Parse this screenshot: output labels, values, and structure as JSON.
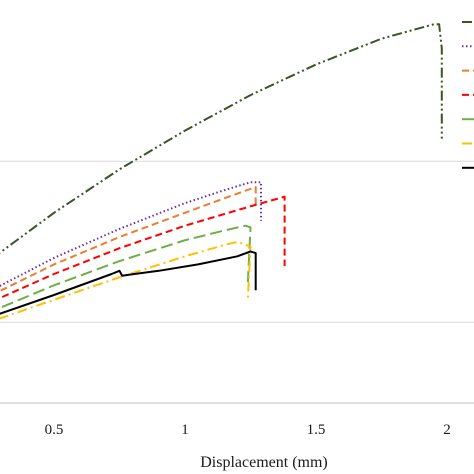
{
  "chart_data": {
    "type": "line",
    "xlabel": "Displacement (mm)",
    "ylabel": "",
    "title": "",
    "xlim": [
      0.0,
      2.1
    ],
    "ylim": [
      0,
      2.5
    ],
    "x_ticks": [
      0.5,
      1,
      1.5,
      2
    ],
    "x_tick_labels": [
      "0.5",
      "1",
      "1.5",
      "2"
    ],
    "y_gridlines": [
      0.5,
      1.5
    ],
    "grid": "horizontal",
    "legend": {
      "placement": "right",
      "entries_visible": 7
    },
    "series": [
      {
        "color": "#375623",
        "dash": "dash-dot-dot",
        "points": [
          [
            0.0,
            0.52
          ],
          [
            0.25,
            0.88
          ],
          [
            0.5,
            1.18
          ],
          [
            0.75,
            1.45
          ],
          [
            1.0,
            1.69
          ],
          [
            1.25,
            1.91
          ],
          [
            1.5,
            2.1
          ],
          [
            1.75,
            2.26
          ],
          [
            1.95,
            2.35
          ],
          [
            1.97,
            2.35
          ],
          [
            1.98,
            2.2
          ],
          [
            1.98,
            1.64
          ]
        ]
      },
      {
        "color": "#7030A0",
        "dash": "dotted",
        "points": [
          [
            0.0,
            0.46
          ],
          [
            0.25,
            0.69
          ],
          [
            0.5,
            0.9
          ],
          [
            0.75,
            1.08
          ],
          [
            1.0,
            1.24
          ],
          [
            1.15,
            1.32
          ],
          [
            1.25,
            1.37
          ],
          [
            1.29,
            1.37
          ],
          [
            1.29,
            1.13
          ]
        ]
      },
      {
        "color": "#ED7D31",
        "dash": "dashed",
        "points": [
          [
            0.0,
            0.44
          ],
          [
            0.25,
            0.66
          ],
          [
            0.5,
            0.86
          ],
          [
            0.75,
            1.03
          ],
          [
            1.0,
            1.18
          ],
          [
            1.15,
            1.27
          ],
          [
            1.27,
            1.34
          ],
          [
            1.27,
            1.23
          ]
        ]
      },
      {
        "color": "#FF0000",
        "dash": "dashed",
        "points": [
          [
            0.0,
            0.42
          ],
          [
            0.25,
            0.62
          ],
          [
            0.5,
            0.8
          ],
          [
            0.75,
            0.96
          ],
          [
            1.0,
            1.1
          ],
          [
            1.25,
            1.22
          ],
          [
            1.38,
            1.28
          ],
          [
            1.38,
            0.85
          ]
        ]
      },
      {
        "color": "#70AD47",
        "dash": "long-dash",
        "points": [
          [
            0.0,
            0.4
          ],
          [
            0.25,
            0.56
          ],
          [
            0.5,
            0.73
          ],
          [
            0.75,
            0.88
          ],
          [
            1.0,
            1.01
          ],
          [
            1.15,
            1.07
          ],
          [
            1.23,
            1.1
          ],
          [
            1.25,
            1.09
          ],
          [
            1.24,
            0.75
          ]
        ]
      },
      {
        "color": "#FFC000",
        "dash": "dash-dot",
        "points": [
          [
            0.0,
            0.36
          ],
          [
            0.25,
            0.5
          ],
          [
            0.5,
            0.64
          ],
          [
            0.75,
            0.78
          ],
          [
            1.0,
            0.91
          ],
          [
            1.15,
            0.98
          ],
          [
            1.2,
            1.0
          ],
          [
            1.25,
            0.97
          ],
          [
            1.24,
            0.65
          ]
        ]
      },
      {
        "color": "#000000",
        "dash": "solid",
        "points": [
          [
            0.0,
            0.37
          ],
          [
            0.25,
            0.53
          ],
          [
            0.5,
            0.67
          ],
          [
            0.72,
            0.8
          ],
          [
            0.75,
            0.82
          ],
          [
            0.76,
            0.79
          ],
          [
            0.9,
            0.82
          ],
          [
            1.05,
            0.86
          ],
          [
            1.2,
            0.91
          ],
          [
            1.25,
            0.94
          ],
          [
            1.27,
            0.93
          ],
          [
            1.27,
            0.7
          ]
        ]
      }
    ]
  }
}
